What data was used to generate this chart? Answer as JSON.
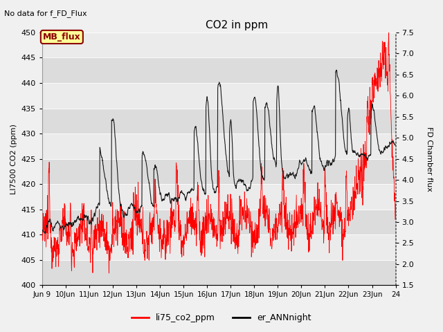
{
  "title": "CO2 in ppm",
  "top_left_text": "No data for f_FD_Flux",
  "ylabel_left": "LI7500 CO2 (ppm)",
  "ylabel_right": "FD Chamber flux",
  "ylim_left": [
    400,
    450
  ],
  "ylim_right": [
    1.5,
    7.5
  ],
  "yticks_left": [
    400,
    405,
    410,
    415,
    420,
    425,
    430,
    435,
    440,
    445,
    450
  ],
  "yticks_right": [
    1.5,
    2.0,
    2.5,
    3.0,
    3.5,
    4.0,
    4.5,
    5.0,
    5.5,
    6.0,
    6.5,
    7.0,
    7.5
  ],
  "mb_flux_label": "MB_flux",
  "legend_labels": [
    "li75_co2_ppm",
    "er_ANNnight"
  ],
  "legend_colors": [
    "#ff0000",
    "#000000"
  ],
  "background_color": "#f0f0f0",
  "plot_bg_color": "#e8e8e8",
  "band_color_light": "#ebebeb",
  "band_color_dark": "#dcdcdc",
  "line_color_red": "#ff0000",
  "line_color_black": "#1a1a1a",
  "mb_flux_box_color": "#ffff99",
  "mb_flux_border_color": "#8b0000",
  "right_spine_color": "#555555"
}
